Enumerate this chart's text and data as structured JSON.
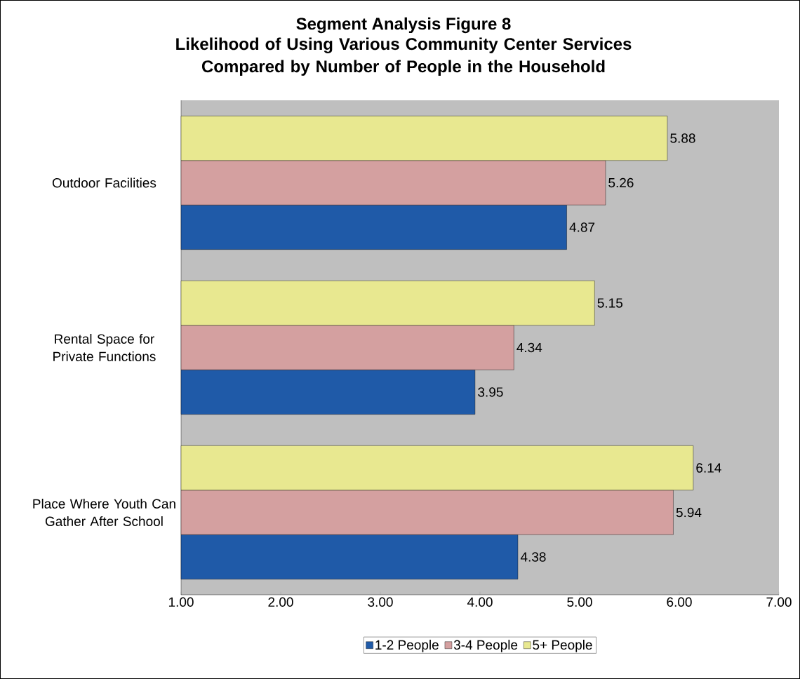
{
  "chart_data": {
    "type": "bar",
    "orientation": "horizontal",
    "title": "Segment Analysis Figure 8",
    "subtitle": "Likelihood of Using Various Community Center Services Compared by Number of People in the Household",
    "categories": [
      "Outdoor Facilities",
      "Rental Space for Private Functions",
      "Place Where Youth Can Gather After School"
    ],
    "series": [
      {
        "name": "1-2 People",
        "color": "#1f5aa8",
        "values": [
          4.87,
          3.95,
          4.38
        ]
      },
      {
        "name": "3-4 People",
        "color": "#d4a0a0",
        "values": [
          5.26,
          4.34,
          5.94
        ]
      },
      {
        "name": "5+ People",
        "color": "#e8e890",
        "values": [
          5.88,
          5.15,
          6.14
        ]
      }
    ],
    "xlim": [
      1,
      7
    ],
    "xticks": [
      {
        "value": 1,
        "label": "1.00"
      },
      {
        "value": 2,
        "label": "2.00"
      },
      {
        "value": 3,
        "label": "3.00"
      },
      {
        "value": 4,
        "label": "4.00"
      },
      {
        "value": 5,
        "label": "5.00"
      },
      {
        "value": 6,
        "label": "6.00"
      },
      {
        "value": 7,
        "label": "7.00"
      }
    ],
    "data_labels": true,
    "legend": "bottom",
    "grid": false
  }
}
